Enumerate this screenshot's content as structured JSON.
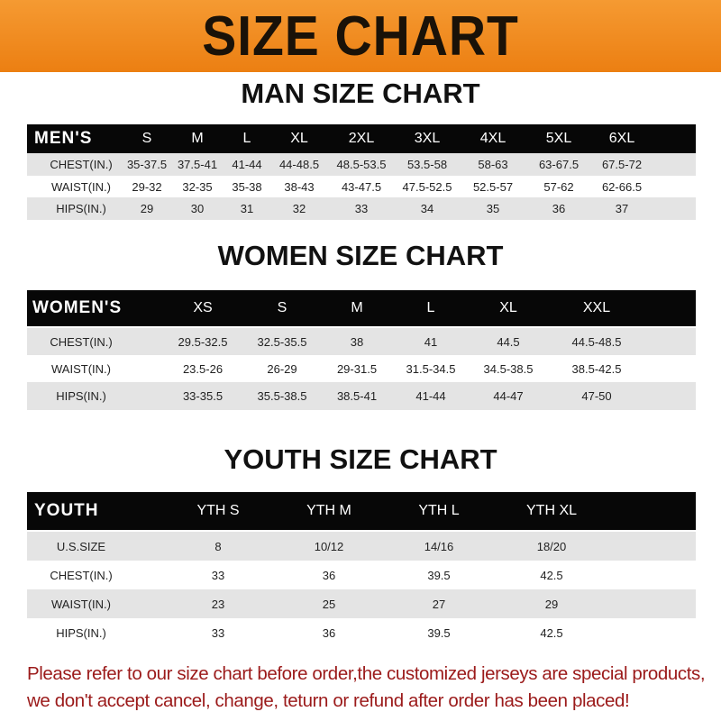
{
  "banner": "SIZE CHART",
  "men": {
    "title": "MAN SIZE CHART",
    "header": [
      "MEN'S",
      "S",
      "M",
      "L",
      "XL",
      "2XL",
      "3XL",
      "4XL",
      "5XL",
      "6XL"
    ],
    "rows": [
      [
        "CHEST(IN.)",
        "35-37.5",
        "37.5-41",
        "41-44",
        "44-48.5",
        "48.5-53.5",
        "53.5-58",
        "58-63",
        "63-67.5",
        "67.5-72"
      ],
      [
        "WAIST(IN.)",
        "29-32",
        "32-35",
        "35-38",
        "38-43",
        "43-47.5",
        "47.5-52.5",
        "52.5-57",
        "57-62",
        "62-66.5"
      ],
      [
        "HIPS(IN.)",
        "29",
        "30",
        "31",
        "32",
        "33",
        "34",
        "35",
        "36",
        "37"
      ]
    ]
  },
  "women": {
    "title": "WOMEN SIZE CHART",
    "header": [
      "WOMEN'S",
      "XS",
      "S",
      "M",
      "L",
      "XL",
      "XXL"
    ],
    "rows": [
      [
        "CHEST(IN.)",
        "29.5-32.5",
        "32.5-35.5",
        "38",
        "41",
        "44.5",
        "44.5-48.5"
      ],
      [
        "WAIST(IN.)",
        "23.5-26",
        "26-29",
        "29-31.5",
        "31.5-34.5",
        "34.5-38.5",
        "38.5-42.5"
      ],
      [
        "HIPS(IN.)",
        "33-35.5",
        "35.5-38.5",
        "38.5-41",
        "41-44",
        "44-47",
        "47-50"
      ]
    ]
  },
  "youth": {
    "title": "YOUTH SIZE CHART",
    "header": [
      "YOUTH",
      "YTH S",
      "YTH M",
      "YTH L",
      "YTH XL"
    ],
    "rows": [
      [
        "U.S.SIZE",
        "8",
        "10/12",
        "14/16",
        "18/20"
      ],
      [
        "CHEST(IN.)",
        "33",
        "36",
        "39.5",
        "42.5"
      ],
      [
        "WAIST(IN.)",
        "23",
        "25",
        "27",
        "29"
      ],
      [
        "HIPS(IN.)",
        "33",
        "36",
        "39.5",
        "42.5"
      ]
    ]
  },
  "note": "Please refer to our size chart before order,the customized jerseys are special products, we don't accept cancel, change, teturn or refund after order has been placed!",
  "colors": {
    "banner": "#ec7f12",
    "header_row": "#070707",
    "stripe": "#e4e4e4",
    "note": "#9b1a1a"
  }
}
